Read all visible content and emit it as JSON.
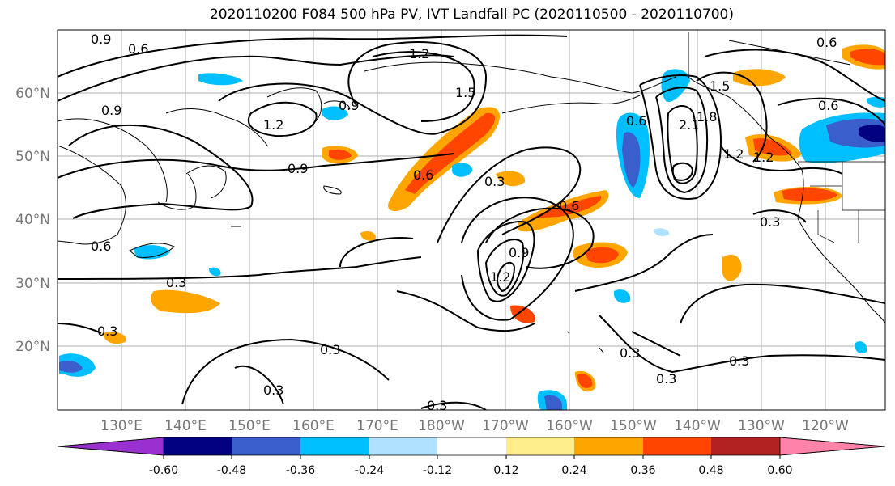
{
  "title": "2020110200 F084 500 hPa PV, IVT Landfall PC (2020110500 - 2020110700)",
  "lat_labels": [
    "60°N",
    "50°N",
    "40°N",
    "30°N",
    "20°N"
  ],
  "lat_values": [
    60,
    50,
    40,
    30,
    20
  ],
  "lon_labels": [
    "130°E",
    "140°E",
    "150°E",
    "160°E",
    "170°E",
    "180°W",
    "170°W",
    "160°W",
    "150°W",
    "140°W",
    "130°W",
    "120°W"
  ],
  "colorbar": {
    "colors": [
      "#9b30d0",
      "#000080",
      "#3a5fcd",
      "#00bfff",
      "#b0e2ff",
      "#ffffff",
      "#ffec8b",
      "#ffa500",
      "#ff4500",
      "#b22222",
      "#ff82ab"
    ],
    "tick_labels": [
      "-0.60",
      "-0.48",
      "-0.36",
      "-0.24",
      "-0.12",
      "0.12",
      "0.24",
      "0.36",
      "0.48",
      "0.60"
    ]
  },
  "contour_labels": [
    "0.9",
    "0.6",
    "1.2",
    "1.5",
    "0.9",
    "1.2",
    "0.9",
    "0.6",
    "0.3",
    "0.6",
    "0.9",
    "1.2",
    "0.6",
    "1.8",
    "2.1",
    "1.5",
    "1.2",
    "0.6",
    "0.3",
    "0.3",
    "0.3",
    "0.3",
    "0.3",
    "0.3",
    "0.3",
    "0.3",
    "0.9",
    "0.6",
    "1.2",
    "0.6",
    "0.3"
  ]
}
